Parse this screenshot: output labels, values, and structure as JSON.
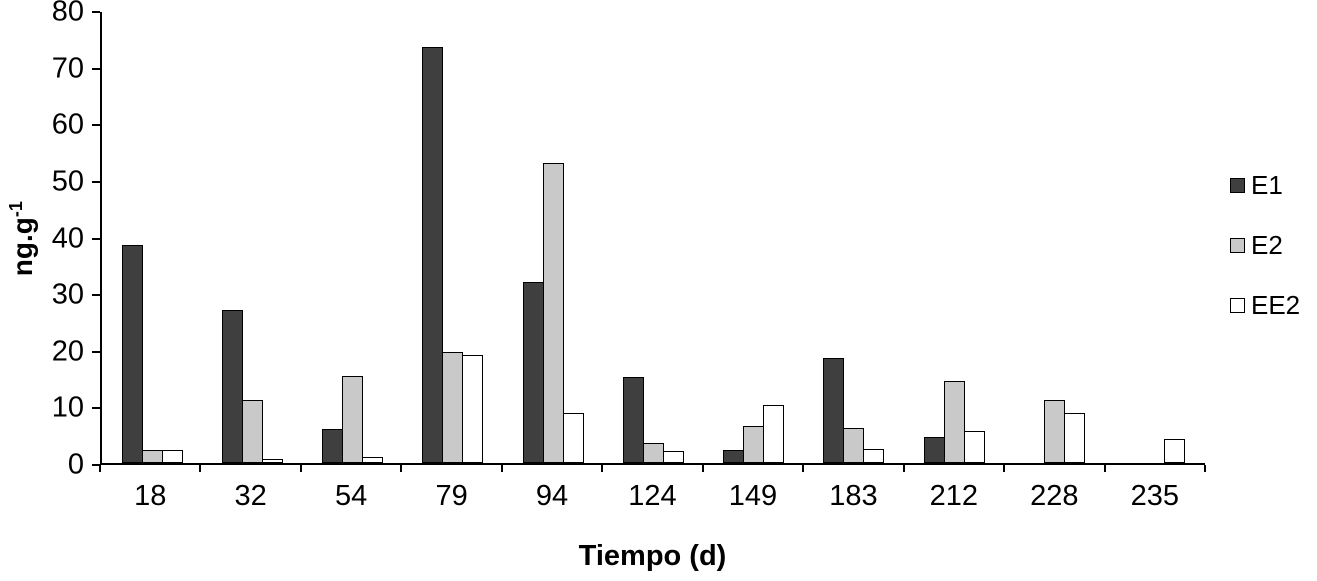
{
  "chart_data": {
    "type": "bar",
    "title": "",
    "xlabel": "Tiempo (d)",
    "ylabel_base": "ng.g",
    "ylabel_exponent": "-1",
    "ylim": [
      0,
      80
    ],
    "y_ticks": [
      0,
      10,
      20,
      30,
      40,
      50,
      60,
      70,
      80
    ],
    "categories": [
      "18",
      "32",
      "54",
      "79",
      "94",
      "124",
      "149",
      "183",
      "212",
      "228",
      "235"
    ],
    "series": [
      {
        "name": "E1",
        "color": "#3f3f3f",
        "values": [
          38.5,
          27,
          6,
          73.5,
          32,
          15.2,
          2.3,
          18.5,
          4.6,
          0,
          0
        ]
      },
      {
        "name": "E2",
        "color": "#c9c9c9",
        "values": [
          2.3,
          11.2,
          15.4,
          19.6,
          53,
          3.5,
          6.5,
          6.2,
          14.5,
          11.2,
          0
        ]
      },
      {
        "name": "EE2",
        "color": "#ffffff",
        "values": [
          2.3,
          0.7,
          1.1,
          19,
          8.8,
          2.1,
          10.2,
          2.5,
          5.7,
          8.8,
          4.2
        ]
      }
    ],
    "legend_position": "right",
    "grid": false
  }
}
